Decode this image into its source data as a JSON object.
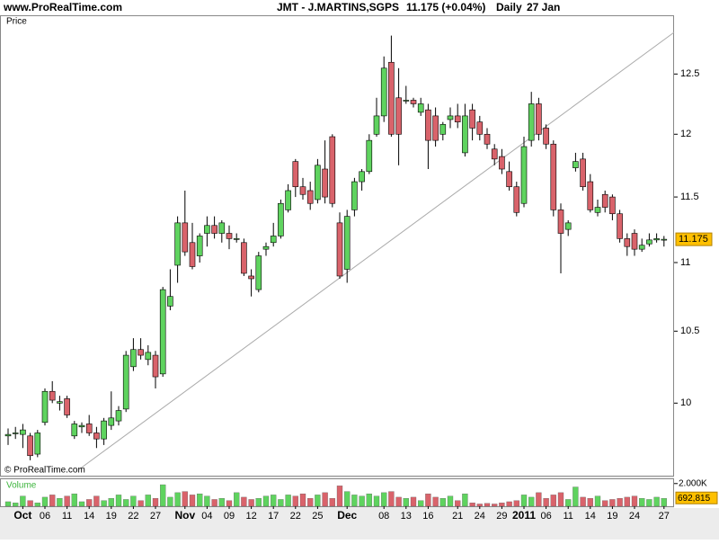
{
  "header": {
    "site": "www.ProRealTime.com",
    "symbol": "JMT - J.MARTINS,SGPS",
    "quote": "11.175 (+0.04%)",
    "period": "Daily",
    "date": "27 Jan"
  },
  "chart_data": {
    "type": "candlestick",
    "panel_label": "Price",
    "watermark": "© ProRealTime.com",
    "log_scale": true,
    "grid": false,
    "up_color": "#5fd35f",
    "down_color": "#d9636b",
    "ylim": [
      9.52,
      13.0
    ],
    "yticks": [
      10,
      10.5,
      11,
      11.5,
      12,
      12.5
    ],
    "current_price": 11.175,
    "categories": [
      null,
      null,
      "Oct",
      null,
      null,
      "06",
      null,
      null,
      "11",
      null,
      null,
      "14",
      null,
      null,
      "19",
      null,
      null,
      "22",
      null,
      null,
      "27",
      null,
      null,
      null,
      "Nov",
      null,
      null,
      "04",
      null,
      null,
      "09",
      null,
      null,
      "12",
      null,
      null,
      "17",
      null,
      null,
      "22",
      null,
      null,
      "25",
      null,
      null,
      null,
      "Dec",
      null,
      null,
      null,
      null,
      "08",
      null,
      null,
      "13",
      null,
      null,
      "16",
      null,
      null,
      null,
      "21",
      null,
      null,
      "24",
      null,
      null,
      "29",
      null,
      null,
      "2011",
      null,
      null,
      "06",
      null,
      null,
      "11",
      null,
      null,
      "14",
      null,
      null,
      "19",
      null,
      null,
      "24",
      null,
      null,
      null,
      "27"
    ],
    "open": [
      9.78,
      9.8,
      9.79,
      9.78,
      9.66,
      9.87,
      10.08,
      10.0,
      10.03,
      9.78,
      9.84,
      9.86,
      9.8,
      9.76,
      9.85,
      9.88,
      9.96,
      10.25,
      10.37,
      10.3,
      10.33,
      10.2,
      10.68,
      10.98,
      11.3,
      11.15,
      11.05,
      11.22,
      11.28,
      11.22,
      11.22,
      11.18,
      11.15,
      10.9,
      10.8,
      11.1,
      11.15,
      11.2,
      11.4,
      11.78,
      11.58,
      11.55,
      11.48,
      11.72,
      11.98,
      11.3,
      10.95,
      11.4,
      11.62,
      11.7,
      12.0,
      12.15,
      12.6,
      12.3,
      12.28,
      12.28,
      12.18,
      12.2,
      12.15,
      12.0,
      12.12,
      12.15,
      11.85,
      12.2,
      12.1,
      12.0,
      11.88,
      11.82,
      11.7,
      11.58,
      11.45,
      11.95,
      12.25,
      12.05,
      11.92,
      11.4,
      11.25,
      11.73,
      11.8,
      11.62,
      11.38,
      11.52,
      11.5,
      11.37,
      11.18,
      11.22,
      11.1,
      11.14,
      11.17,
      11.17
    ],
    "high": [
      9.83,
      9.84,
      9.86,
      9.8,
      9.82,
      10.1,
      10.15,
      10.05,
      10.05,
      9.88,
      9.87,
      9.92,
      9.84,
      9.9,
      10.08,
      9.98,
      10.36,
      10.45,
      10.45,
      10.4,
      10.36,
      10.82,
      10.95,
      11.35,
      11.55,
      11.3,
      11.22,
      11.35,
      11.35,
      11.32,
      11.28,
      11.22,
      11.18,
      10.95,
      11.08,
      11.15,
      11.3,
      11.48,
      11.6,
      11.8,
      11.65,
      11.62,
      11.8,
      11.95,
      12.0,
      11.38,
      11.4,
      11.65,
      11.72,
      12.0,
      12.3,
      12.65,
      12.83,
      12.55,
      12.4,
      12.3,
      12.3,
      12.25,
      12.22,
      12.1,
      12.22,
      12.25,
      12.25,
      12.25,
      12.15,
      12.05,
      11.92,
      11.88,
      11.78,
      11.62,
      11.98,
      12.35,
      12.3,
      12.08,
      11.95,
      11.45,
      11.32,
      11.85,
      11.85,
      11.68,
      11.48,
      11.55,
      11.52,
      11.4,
      11.22,
      11.25,
      11.18,
      11.22,
      11.22,
      11.2
    ],
    "low": [
      9.72,
      9.76,
      9.7,
      9.62,
      9.64,
      9.85,
      10.0,
      9.95,
      9.9,
      9.76,
      9.8,
      9.78,
      9.7,
      9.72,
      9.82,
      9.85,
      9.94,
      10.22,
      10.3,
      10.26,
      10.1,
      10.18,
      10.65,
      10.85,
      11.05,
      10.95,
      11.0,
      11.12,
      11.18,
      11.15,
      11.1,
      11.15,
      10.9,
      10.75,
      10.78,
      11.05,
      11.12,
      11.18,
      11.38,
      11.5,
      11.48,
      11.4,
      11.45,
      11.45,
      11.42,
      10.88,
      10.85,
      11.35,
      11.55,
      11.68,
      11.98,
      12.1,
      11.98,
      11.75,
      12.25,
      12.22,
      12.15,
      11.72,
      11.9,
      11.95,
      12.05,
      12.05,
      11.82,
      11.95,
      11.95,
      11.88,
      11.75,
      11.68,
      11.55,
      11.35,
      11.42,
      11.9,
      11.95,
      11.88,
      11.35,
      10.92,
      11.2,
      11.7,
      11.55,
      11.38,
      11.35,
      11.38,
      11.32,
      11.15,
      11.05,
      11.05,
      11.08,
      11.12,
      11.15,
      11.12
    ],
    "close": [
      9.79,
      9.8,
      9.82,
      9.65,
      9.8,
      10.08,
      10.02,
      10.01,
      9.92,
      9.86,
      9.85,
      9.8,
      9.76,
      9.88,
      9.9,
      9.95,
      10.33,
      10.37,
      10.33,
      10.35,
      10.18,
      10.8,
      10.75,
      11.3,
      11.08,
      10.97,
      11.2,
      11.28,
      11.22,
      11.3,
      11.18,
      11.18,
      10.92,
      10.88,
      11.05,
      11.12,
      11.2,
      11.45,
      11.55,
      11.58,
      11.52,
      11.45,
      11.75,
      11.5,
      11.45,
      10.9,
      11.35,
      11.62,
      11.7,
      11.95,
      12.15,
      12.55,
      12.0,
      12.0,
      12.28,
      12.25,
      12.25,
      11.95,
      11.95,
      12.08,
      12.15,
      12.1,
      12.15,
      12.05,
      12.0,
      11.92,
      11.8,
      11.72,
      11.58,
      11.38,
      11.9,
      12.25,
      12.0,
      11.92,
      11.4,
      11.22,
      11.3,
      11.78,
      11.58,
      11.4,
      11.42,
      11.42,
      11.37,
      11.18,
      11.12,
      11.1,
      11.13,
      11.17,
      11.18,
      11.175
    ],
    "volume": {
      "label": "Volume",
      "ylim": [
        0,
        2300000
      ],
      "yticks": [
        {
          "value": 2000000,
          "label": "2.000K"
        }
      ],
      "current": {
        "value": 692815,
        "label": "692,815"
      },
      "values": [
        400000,
        300000,
        900000,
        500000,
        300000,
        800000,
        1000000,
        700000,
        900000,
        1100000,
        400000,
        600000,
        900000,
        500000,
        700000,
        1000000,
        600000,
        900000,
        500000,
        1000000,
        700000,
        1900000,
        800000,
        1200000,
        1300000,
        1000000,
        1100000,
        900000,
        600000,
        700000,
        500000,
        1200000,
        800000,
        600000,
        700000,
        900000,
        1000000,
        600000,
        1000000,
        900000,
        1100000,
        700000,
        1000000,
        1200000,
        700000,
        1800000,
        1300000,
        1000000,
        900000,
        1100000,
        900000,
        1200000,
        1300000,
        800000,
        700000,
        800000,
        500000,
        1100000,
        800000,
        700000,
        900000,
        500000,
        1100000,
        300000,
        200000,
        250000,
        200000,
        300000,
        400000,
        500000,
        1000000,
        800000,
        1200000,
        700000,
        1000000,
        1200000,
        600000,
        1700000,
        800000,
        700000,
        900000,
        500000,
        600000,
        700000,
        800000,
        900000,
        700000,
        600000,
        800000,
        692815
      ]
    }
  }
}
